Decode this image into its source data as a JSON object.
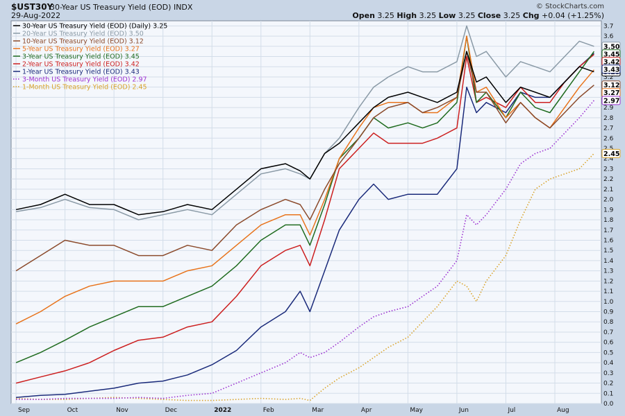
{
  "header": {
    "symbol": "$UST30Y",
    "description": "30-Year US Treasury Yield (EOD)",
    "exchange": "INDX",
    "date": "29-Aug-2022",
    "credit": "© StockCharts.com",
    "open_label": "Open",
    "open": "3.25",
    "high_label": "High",
    "high": "3.25",
    "low_label": "Low",
    "low": "3.25",
    "close_label": "Close",
    "close": "3.25",
    "chg_label": "Chg",
    "chg": "+0.04 (+1.25%)"
  },
  "chart_data": {
    "type": "line",
    "ylim": [
      0.0,
      3.75
    ],
    "y_ticks": [
      "0.0",
      "0.1",
      "0.2",
      "0.3",
      "0.4",
      "0.5",
      "0.6",
      "0.7",
      "0.8",
      "0.9",
      "1.0",
      "1.1",
      "1.2",
      "1.3",
      "1.4",
      "1.5",
      "1.6",
      "1.7",
      "1.8",
      "1.9",
      "2.0",
      "2.1",
      "2.2",
      "2.3",
      "2.4",
      "2.5",
      "2.6",
      "2.7",
      "2.8",
      "2.9",
      "3.0",
      "3.1",
      "3.2",
      "3.3",
      "3.4",
      "3.5",
      "3.6",
      "3.7"
    ],
    "x_labels": [
      "Sep",
      "Oct",
      "Nov",
      "Dec",
      "2022",
      "Feb",
      "Mar",
      "Apr",
      "May",
      "Jun",
      "Jul",
      "Aug"
    ],
    "x_label_pos": [
      0.0,
      1.0,
      2.0,
      3.0,
      4.0,
      5.0,
      6.0,
      7.0,
      8.0,
      9.0,
      10.0,
      11.0
    ],
    "x_range": [
      -0.1,
      11.95
    ],
    "grid": true,
    "legend_position": "top-left",
    "series": [
      {
        "name": "30-Year US Treasury Yield (EOD) (Daily) 3.25",
        "color": "#000000",
        "style": "solid",
        "end_label": "3.25",
        "x": [
          0.0,
          0.5,
          1.0,
          1.5,
          2.0,
          2.5,
          3.0,
          3.5,
          4.0,
          4.5,
          5.0,
          5.5,
          5.8,
          6.0,
          6.3,
          6.6,
          7.0,
          7.3,
          7.6,
          8.0,
          8.3,
          8.6,
          9.0,
          9.2,
          9.4,
          9.6,
          10.0,
          10.3,
          10.6,
          10.9,
          11.2,
          11.5,
          11.8
        ],
        "values": [
          1.9,
          1.95,
          2.05,
          1.95,
          1.95,
          1.85,
          1.88,
          1.95,
          1.9,
          2.1,
          2.3,
          2.35,
          2.28,
          2.2,
          2.45,
          2.55,
          2.75,
          2.9,
          3.0,
          3.05,
          3.0,
          2.95,
          3.05,
          3.45,
          3.15,
          3.2,
          2.95,
          3.1,
          3.05,
          3.0,
          3.15,
          3.3,
          3.25
        ]
      },
      {
        "name": "20-Year US Treasury Yield (EOD) 3.50",
        "color": "#8a9aa6",
        "style": "solid",
        "end_label": "3.50",
        "x": [
          0.0,
          0.5,
          1.0,
          1.5,
          2.0,
          2.5,
          3.0,
          3.5,
          4.0,
          4.5,
          5.0,
          5.5,
          5.8,
          6.0,
          6.3,
          6.6,
          7.0,
          7.3,
          7.6,
          8.0,
          8.3,
          8.6,
          9.0,
          9.2,
          9.4,
          9.6,
          10.0,
          10.3,
          10.6,
          10.9,
          11.2,
          11.5,
          11.8
        ],
        "values": [
          1.88,
          1.92,
          2.0,
          1.92,
          1.9,
          1.8,
          1.85,
          1.9,
          1.85,
          2.05,
          2.25,
          2.3,
          2.25,
          2.2,
          2.45,
          2.6,
          2.9,
          3.1,
          3.2,
          3.3,
          3.25,
          3.25,
          3.35,
          3.7,
          3.4,
          3.45,
          3.2,
          3.35,
          3.3,
          3.25,
          3.4,
          3.55,
          3.5
        ]
      },
      {
        "name": "10-Year US Treasury Yield (EOD) 3.12",
        "color": "#8b4a2b",
        "style": "solid",
        "end_label": "3.12",
        "x": [
          0.0,
          0.5,
          1.0,
          1.5,
          2.0,
          2.5,
          3.0,
          3.5,
          4.0,
          4.5,
          5.0,
          5.5,
          5.8,
          6.0,
          6.3,
          6.6,
          7.0,
          7.3,
          7.6,
          8.0,
          8.3,
          8.6,
          9.0,
          9.2,
          9.4,
          9.6,
          10.0,
          10.3,
          10.6,
          10.9,
          11.2,
          11.5,
          11.8
        ],
        "values": [
          1.3,
          1.45,
          1.6,
          1.55,
          1.55,
          1.45,
          1.45,
          1.55,
          1.5,
          1.75,
          1.9,
          2.0,
          1.95,
          1.8,
          2.1,
          2.35,
          2.6,
          2.8,
          2.9,
          2.95,
          2.85,
          2.9,
          3.0,
          3.45,
          3.05,
          3.05,
          2.75,
          2.95,
          2.8,
          2.7,
          2.85,
          3.0,
          3.12
        ]
      },
      {
        "name": "5-Year US Treasury Yield (EOD) 3.27",
        "color": "#e8731b",
        "style": "solid",
        "end_label": "3.27",
        "x": [
          0.0,
          0.5,
          1.0,
          1.5,
          2.0,
          2.5,
          3.0,
          3.5,
          4.0,
          4.5,
          5.0,
          5.5,
          5.8,
          6.0,
          6.3,
          6.6,
          7.0,
          7.3,
          7.6,
          8.0,
          8.3,
          8.6,
          9.0,
          9.2,
          9.4,
          9.6,
          10.0,
          10.3,
          10.6,
          10.9,
          11.2,
          11.5,
          11.8
        ],
        "values": [
          0.78,
          0.9,
          1.05,
          1.15,
          1.2,
          1.2,
          1.2,
          1.3,
          1.35,
          1.55,
          1.75,
          1.85,
          1.85,
          1.65,
          2.0,
          2.4,
          2.7,
          2.9,
          2.95,
          2.95,
          2.85,
          2.85,
          3.0,
          3.6,
          3.05,
          3.1,
          2.8,
          2.95,
          2.8,
          2.7,
          2.9,
          3.1,
          3.27
        ]
      },
      {
        "name": "3-Year US Treasury Yield (EOD) 3.45",
        "color": "#1f6b1f",
        "style": "solid",
        "end_label": "3.45",
        "x": [
          0.0,
          0.5,
          1.0,
          1.5,
          2.0,
          2.5,
          3.0,
          3.5,
          4.0,
          4.5,
          5.0,
          5.5,
          5.8,
          6.0,
          6.3,
          6.6,
          7.0,
          7.3,
          7.6,
          8.0,
          8.3,
          8.6,
          9.0,
          9.2,
          9.4,
          9.6,
          10.0,
          10.3,
          10.6,
          10.9,
          11.2,
          11.5,
          11.8
        ],
        "values": [
          0.4,
          0.5,
          0.62,
          0.75,
          0.85,
          0.95,
          0.95,
          1.05,
          1.15,
          1.35,
          1.6,
          1.75,
          1.75,
          1.55,
          1.95,
          2.4,
          2.6,
          2.8,
          2.7,
          2.75,
          2.7,
          2.75,
          2.95,
          3.6,
          2.95,
          3.05,
          2.8,
          3.05,
          2.9,
          2.85,
          3.05,
          3.25,
          3.45
        ]
      },
      {
        "name": "2-Year US Treasury Yield (EOD) 3.42",
        "color": "#cc1f1f",
        "style": "solid",
        "end_label": "3.42",
        "x": [
          0.0,
          0.5,
          1.0,
          1.5,
          2.0,
          2.5,
          3.0,
          3.5,
          4.0,
          4.5,
          5.0,
          5.5,
          5.8,
          6.0,
          6.3,
          6.6,
          7.0,
          7.3,
          7.6,
          8.0,
          8.3,
          8.6,
          9.0,
          9.2,
          9.4,
          9.6,
          10.0,
          10.3,
          10.6,
          10.9,
          11.2,
          11.5,
          11.8
        ],
        "values": [
          0.2,
          0.26,
          0.32,
          0.4,
          0.52,
          0.62,
          0.65,
          0.75,
          0.8,
          1.05,
          1.35,
          1.5,
          1.55,
          1.35,
          1.8,
          2.3,
          2.5,
          2.65,
          2.55,
          2.55,
          2.55,
          2.6,
          2.7,
          3.4,
          2.95,
          3.0,
          2.9,
          3.1,
          2.95,
          2.95,
          3.15,
          3.3,
          3.42
        ]
      },
      {
        "name": "1-Year US Treasury Yield (EOD) 3.43",
        "color": "#1a2a7a",
        "style": "solid",
        "end_label": "3.43",
        "x": [
          0.0,
          0.5,
          1.0,
          1.5,
          2.0,
          2.5,
          3.0,
          3.5,
          4.0,
          4.5,
          5.0,
          5.5,
          5.8,
          6.0,
          6.3,
          6.6,
          7.0,
          7.3,
          7.6,
          8.0,
          8.3,
          8.6,
          9.0,
          9.2,
          9.4,
          9.6,
          10.0,
          10.3,
          10.6,
          10.9,
          11.2,
          11.5,
          11.8
        ],
        "values": [
          0.06,
          0.08,
          0.09,
          0.12,
          0.15,
          0.2,
          0.22,
          0.28,
          0.38,
          0.52,
          0.75,
          0.9,
          1.1,
          0.9,
          1.3,
          1.7,
          2.0,
          2.15,
          2.0,
          2.05,
          2.05,
          2.05,
          2.3,
          3.1,
          2.85,
          2.95,
          2.85,
          3.05,
          3.0,
          3.0,
          3.15,
          3.3,
          3.43
        ]
      },
      {
        "name": "3-Month US Treasury Yield (EOD) 2.97",
        "color": "#9b30d0",
        "style": "dotted",
        "end_label": "2.97",
        "x": [
          0.0,
          0.5,
          1.0,
          1.5,
          2.0,
          2.5,
          3.0,
          3.5,
          4.0,
          4.5,
          5.0,
          5.5,
          5.8,
          6.0,
          6.3,
          6.6,
          7.0,
          7.3,
          7.6,
          8.0,
          8.3,
          8.6,
          9.0,
          9.2,
          9.4,
          9.6,
          10.0,
          10.3,
          10.6,
          10.9,
          11.2,
          11.5,
          11.8
        ],
        "values": [
          0.04,
          0.04,
          0.05,
          0.05,
          0.05,
          0.06,
          0.05,
          0.08,
          0.1,
          0.2,
          0.3,
          0.4,
          0.5,
          0.45,
          0.5,
          0.6,
          0.75,
          0.85,
          0.9,
          0.95,
          1.05,
          1.15,
          1.4,
          1.85,
          1.75,
          1.85,
          2.1,
          2.35,
          2.45,
          2.5,
          2.65,
          2.8,
          2.97
        ]
      },
      {
        "name": "1-Month US Treasury Yield (EOD) 2.45",
        "color": "#d9a32a",
        "style": "dotted",
        "end_label": "2.45",
        "x": [
          0.0,
          0.5,
          1.0,
          1.5,
          2.0,
          2.5,
          3.0,
          3.5,
          4.0,
          4.5,
          5.0,
          5.5,
          5.8,
          6.0,
          6.3,
          6.6,
          7.0,
          7.3,
          7.6,
          8.0,
          8.3,
          8.6,
          9.0,
          9.2,
          9.4,
          9.6,
          10.0,
          10.3,
          10.6,
          10.9,
          11.2,
          11.5,
          11.8
        ],
        "values": [
          0.05,
          0.04,
          0.04,
          0.05,
          0.06,
          0.05,
          0.04,
          0.03,
          0.03,
          0.04,
          0.05,
          0.04,
          0.05,
          0.03,
          0.15,
          0.25,
          0.35,
          0.45,
          0.55,
          0.65,
          0.8,
          0.95,
          1.2,
          1.15,
          1.0,
          1.2,
          1.45,
          1.8,
          2.1,
          2.2,
          2.25,
          2.3,
          2.45
        ]
      }
    ]
  }
}
